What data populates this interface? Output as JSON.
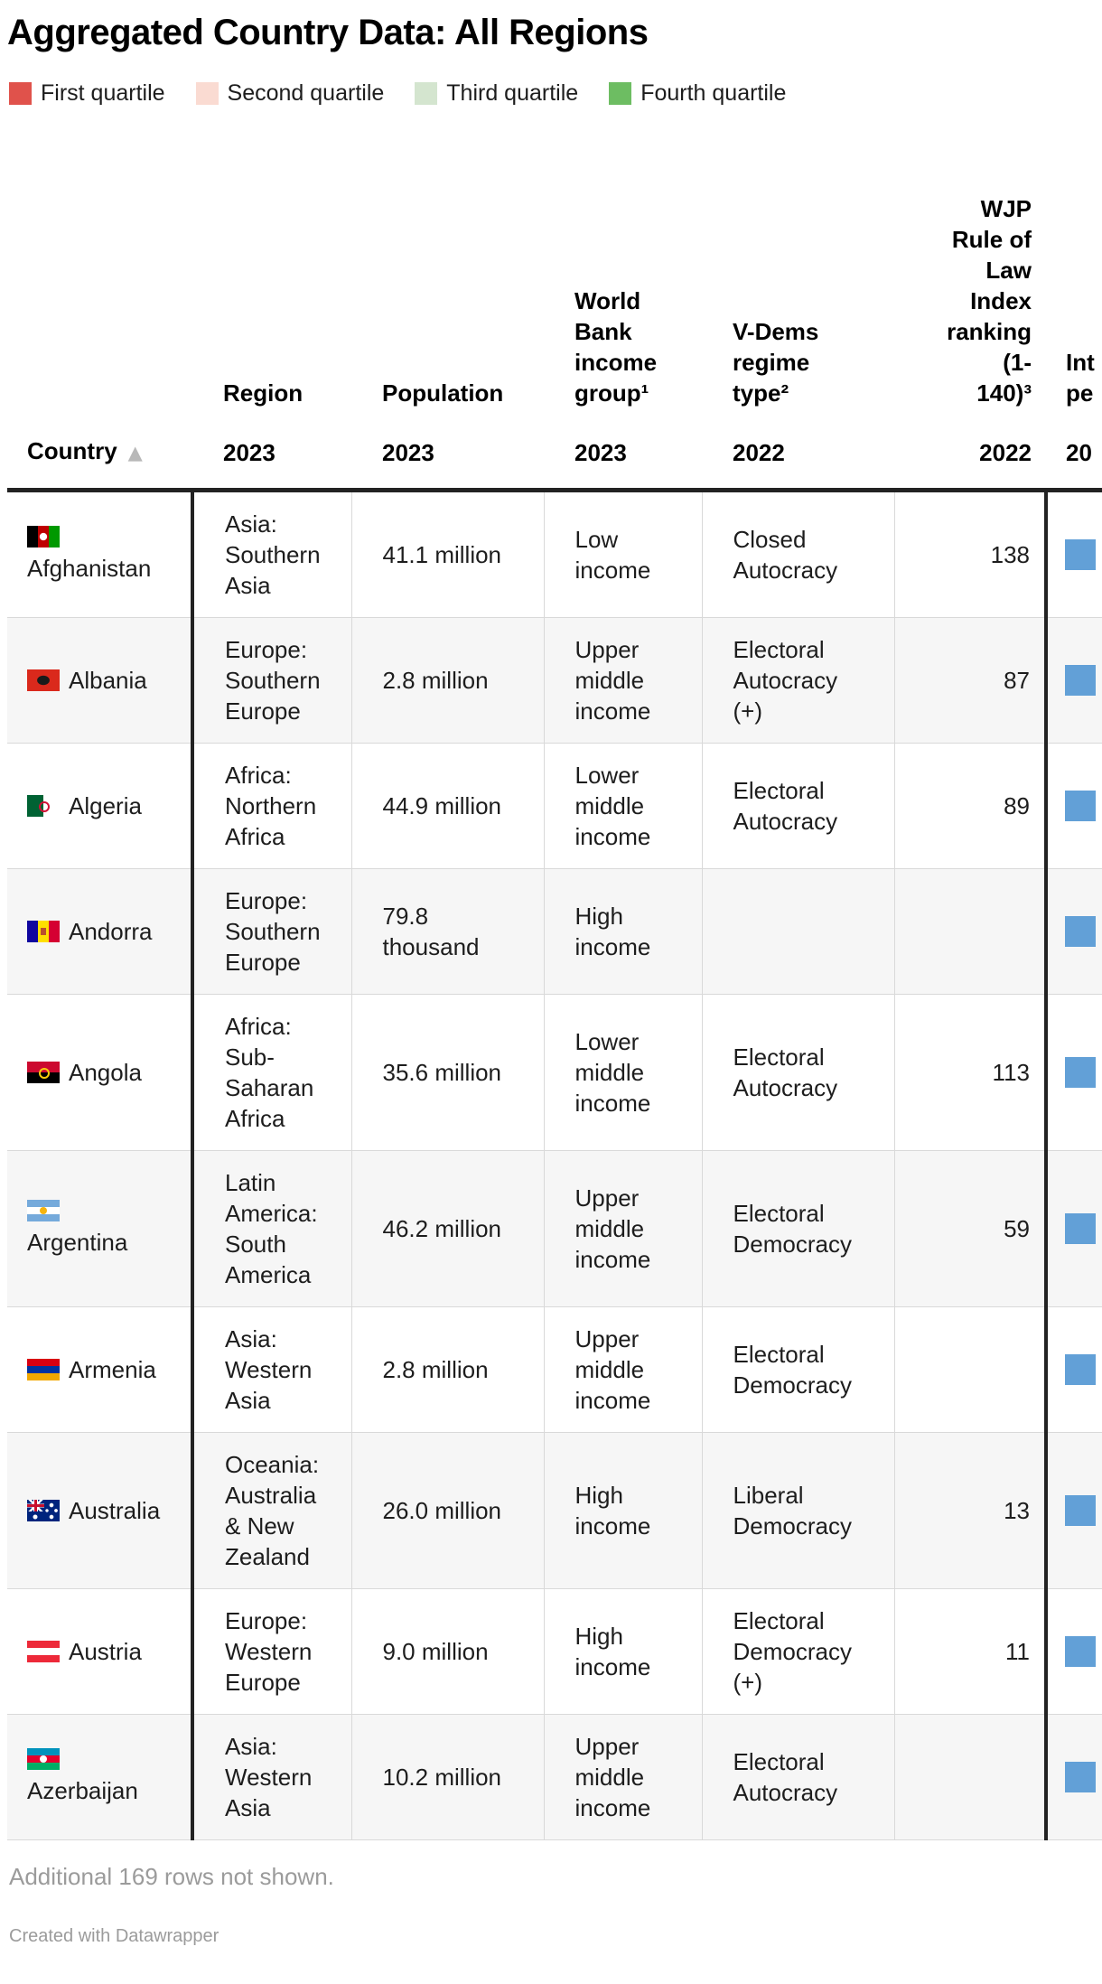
{
  "title": "Aggregated Country Data: All Regions",
  "legend": {
    "items": [
      {
        "label": "First quartile",
        "color": "#e0524b",
        "icon": "first-quartile-swatch"
      },
      {
        "label": "Second quartile",
        "color": "#fadbd2",
        "icon": "second-quartile-swatch"
      },
      {
        "label": "Third quartile",
        "color": "#d4e5cf",
        "icon": "third-quartile-swatch"
      },
      {
        "label": "Fourth quartile",
        "color": "#6dbd62",
        "icon": "fourth-quartile-swatch"
      }
    ]
  },
  "table": {
    "sort_arrow": "▲",
    "columns": [
      {
        "id": "country",
        "label": "",
        "year": "Country",
        "sortable": true
      },
      {
        "id": "region",
        "label": "Region",
        "year": "2023"
      },
      {
        "id": "population",
        "label": "Population",
        "year": "2023"
      },
      {
        "id": "income",
        "label": "World\nBank\nincome\ngroup¹",
        "year": "2023"
      },
      {
        "id": "regime",
        "label": "V-Dems\nregime\ntype²",
        "year": "2022"
      },
      {
        "id": "wjp",
        "label": "WJP\nRule of\nLaw\nIndex\nranking\n(1-\n140)³",
        "year": "2022"
      },
      {
        "id": "extra",
        "label": "Int\npe",
        "year": "20"
      }
    ],
    "rows": [
      {
        "country": "Afghanistan",
        "flag": "afghanistan",
        "stacked": true,
        "region": "Asia:\nSouthern\nAsia",
        "population": "41.1 million",
        "income": "Low\nincome",
        "regime": "Closed\nAutocracy",
        "wjp": "138",
        "marker": true
      },
      {
        "country": "Albania",
        "flag": "albania",
        "stacked": false,
        "region": "Europe:\nSouthern\nEurope",
        "population": "2.8 million",
        "income": "Upper\nmiddle\nincome",
        "regime": "Electoral\nAutocracy\n(+)",
        "wjp": "87",
        "marker": true
      },
      {
        "country": "Algeria",
        "flag": "algeria",
        "stacked": false,
        "region": "Africa:\nNorthern\nAfrica",
        "population": "44.9 million",
        "income": "Lower\nmiddle\nincome",
        "regime": "Electoral\nAutocracy",
        "wjp": "89",
        "marker": true
      },
      {
        "country": "Andorra",
        "flag": "andorra",
        "stacked": false,
        "region": "Europe:\nSouthern\nEurope",
        "population": "79.8\nthousand",
        "income": "High\nincome",
        "regime": "",
        "wjp": "",
        "marker": true
      },
      {
        "country": "Angola",
        "flag": "angola",
        "stacked": false,
        "region": "Africa:\nSub-\nSaharan\nAfrica",
        "population": "35.6 million",
        "income": "Lower\nmiddle\nincome",
        "regime": "Electoral\nAutocracy",
        "wjp": "113",
        "marker": true
      },
      {
        "country": "Argentina",
        "flag": "argentina",
        "stacked": true,
        "region": "Latin\nAmerica:\nSouth\nAmerica",
        "population": "46.2 million",
        "income": "Upper\nmiddle\nincome",
        "regime": "Electoral\nDemocracy",
        "wjp": "59",
        "marker": true
      },
      {
        "country": "Armenia",
        "flag": "armenia",
        "stacked": false,
        "region": "Asia:\nWestern\nAsia",
        "population": "2.8 million",
        "income": "Upper\nmiddle\nincome",
        "regime": "Electoral\nDemocracy",
        "wjp": "",
        "marker": true
      },
      {
        "country": "Australia",
        "flag": "australia",
        "stacked": false,
        "region": "Oceania:\nAustralia\n& New\nZealand",
        "population": "26.0 million",
        "income": "High\nincome",
        "regime": "Liberal\nDemocracy",
        "wjp": "13",
        "marker": true
      },
      {
        "country": "Austria",
        "flag": "austria",
        "stacked": false,
        "region": "Europe:\nWestern\nEurope",
        "population": "9.0 million",
        "income": "High\nincome",
        "regime": "Electoral\nDemocracy\n(+)",
        "wjp": "11",
        "marker": true
      },
      {
        "country": "Azerbaijan",
        "flag": "azerbaijan",
        "stacked": true,
        "region": "Asia:\nWestern\nAsia",
        "population": "10.2 million",
        "income": "Upper\nmiddle\nincome",
        "regime": "Electoral\nAutocracy",
        "wjp": "",
        "marker": true
      }
    ]
  },
  "footer": {
    "note": "Additional 169 rows not shown.",
    "credit": "Created with Datawrapper"
  },
  "colors": {
    "marker_blue": "#62a0d7",
    "thick_rule": "#222222",
    "row_alt": "#f6f6f6",
    "gridline": "#d9d9d9",
    "footer_text": "#9b9b9b"
  }
}
